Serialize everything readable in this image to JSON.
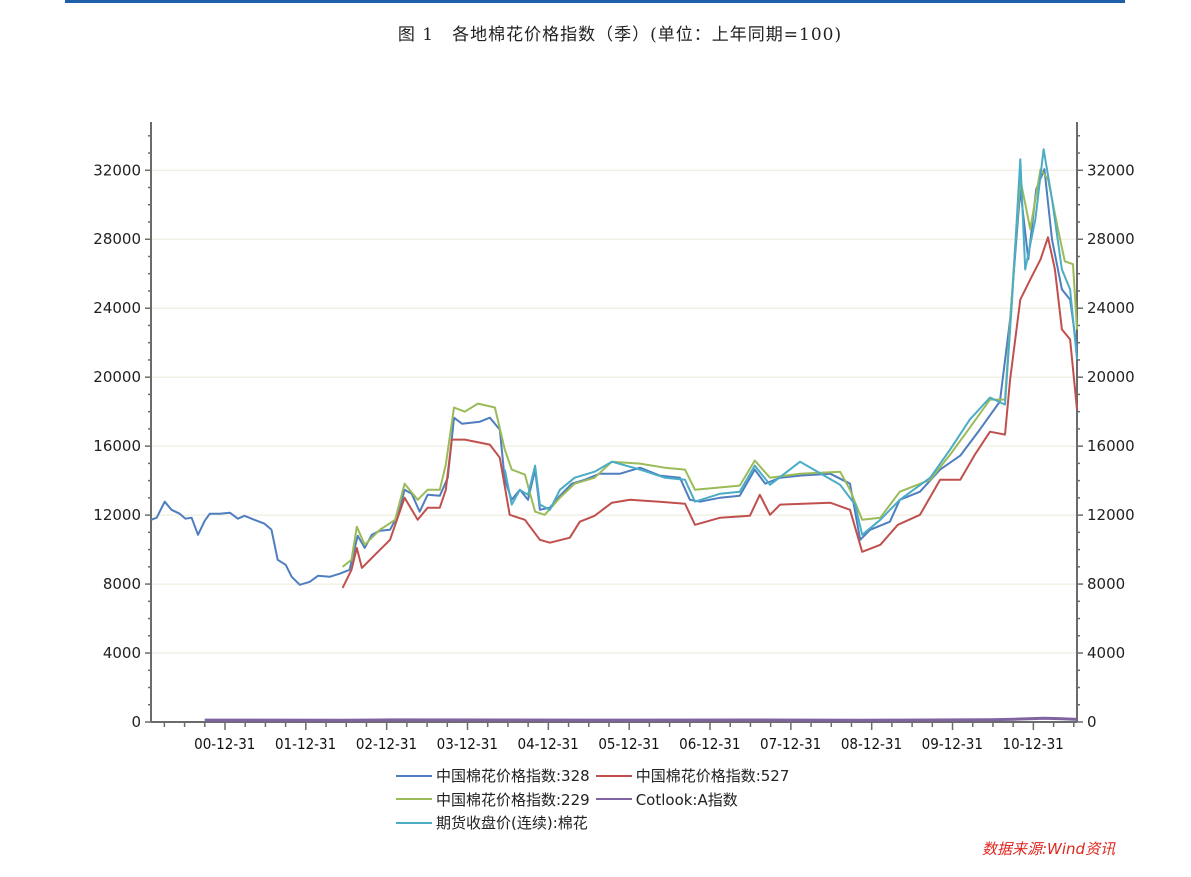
{
  "title": "图 1　各地棉花价格指数（季）(单位：上年同期=100)",
  "source": "数据来源:Wind资讯",
  "colors": {
    "top_rule": "#1f5fa8",
    "source_text": "#e0261e"
  },
  "chart_data": {
    "type": "line",
    "title": "图 1　各地棉花价格指数（季）(单位：上年同期=100)",
    "xlabel": "",
    "ylabel": "",
    "xlim": [
      "2000-02-01",
      "2011-07-17"
    ],
    "ylim": [
      0,
      34800
    ],
    "yticks": [
      0,
      4000,
      8000,
      12000,
      16000,
      20000,
      24000,
      28000,
      32000
    ],
    "ytick_labels": [
      "0",
      "4000",
      "8000",
      "12000",
      "16000",
      "20000",
      "24000",
      "28000",
      "32000"
    ],
    "xticks": [
      "2000-12-31",
      "2001-12-31",
      "2002-12-31",
      "2003-12-31",
      "2004-12-31",
      "2005-12-31",
      "2006-12-31",
      "2007-12-31",
      "2008-12-31",
      "2009-12-31",
      "2010-12-31"
    ],
    "xtick_labels": [
      "00-12-31",
      "01-12-31",
      "02-12-31",
      "03-12-31",
      "04-12-31",
      "05-12-31",
      "06-12-31",
      "07-12-31",
      "08-12-31",
      "09-12-31",
      "10-12-31"
    ],
    "dual_y_axis": true,
    "grid": "horizontal",
    "legend_position": "bottom",
    "series": [
      {
        "name": "中国棉花价格指数:328",
        "color": "#4f7ec0",
        "points": [
          [
            "2000-02-01",
            11730
          ],
          [
            "2000-02-27",
            11850
          ],
          [
            "2000-04-03",
            12780
          ],
          [
            "2000-05-04",
            12310
          ],
          [
            "2000-06-10",
            12080
          ],
          [
            "2000-07-06",
            11790
          ],
          [
            "2000-08-03",
            11850
          ],
          [
            "2000-09-01",
            10860
          ],
          [
            "2000-10-01",
            11670
          ],
          [
            "2000-10-24",
            12080
          ],
          [
            "2000-12-08",
            12080
          ],
          [
            "2001-01-23",
            12140
          ],
          [
            "2001-02-28",
            11790
          ],
          [
            "2001-03-30",
            11960
          ],
          [
            "2001-05-14",
            11730
          ],
          [
            "2001-06-29",
            11500
          ],
          [
            "2001-07-30",
            11150
          ],
          [
            "2001-08-27",
            9410
          ],
          [
            "2001-10-02",
            9120
          ],
          [
            "2001-10-29",
            8420
          ],
          [
            "2001-12-05",
            7960
          ],
          [
            "2002-01-19",
            8130
          ],
          [
            "2002-02-25",
            8480
          ],
          [
            "2002-04-19",
            8420
          ],
          [
            "2002-06-03",
            8600
          ],
          [
            "2002-07-17",
            8830
          ],
          [
            "2002-08-23",
            10800
          ],
          [
            "2002-09-24",
            10100
          ],
          [
            "2002-10-26",
            10860
          ],
          [
            "2002-12-01",
            11090
          ],
          [
            "2003-01-16",
            11150
          ],
          [
            "2003-02-21",
            12020
          ],
          [
            "2003-03-23",
            13470
          ],
          [
            "2003-04-24",
            13240
          ],
          [
            "2003-05-30",
            12200
          ],
          [
            "2003-07-05",
            13180
          ],
          [
            "2003-08-29",
            13120
          ],
          [
            "2003-10-04",
            14170
          ],
          [
            "2003-11-01",
            17650
          ],
          [
            "2003-12-07",
            17300
          ],
          [
            "2004-02-26",
            17420
          ],
          [
            "2004-04-11",
            17650
          ],
          [
            "2004-05-26",
            16960
          ],
          [
            "2004-06-18",
            14050
          ],
          [
            "2004-07-19",
            12890
          ],
          [
            "2004-08-25",
            13470
          ],
          [
            "2004-10-01",
            12890
          ],
          [
            "2004-11-02",
            14640
          ],
          [
            "2004-11-24",
            12310
          ],
          [
            "2005-01-08",
            12430
          ],
          [
            "2005-02-22",
            13120
          ],
          [
            "2005-04-17",
            13820
          ],
          [
            "2005-06-14",
            14050
          ],
          [
            "2005-08-21",
            14400
          ],
          [
            "2005-11-21",
            14400
          ],
          [
            "2006-02-19",
            14750
          ],
          [
            "2006-05-19",
            14290
          ],
          [
            "2006-08-18",
            14170
          ],
          [
            "2006-10-02",
            12890
          ],
          [
            "2006-11-17",
            12780
          ],
          [
            "2007-02-16",
            13010
          ],
          [
            "2007-05-15",
            13120
          ],
          [
            "2007-07-22",
            14640
          ],
          [
            "2007-09-07",
            13820
          ],
          [
            "2007-11-14",
            14170
          ],
          [
            "2008-02-12",
            14290
          ],
          [
            "2008-06-27",
            14400
          ],
          [
            "2008-09-25",
            13820
          ],
          [
            "2008-11-10",
            10570
          ],
          [
            "2008-12-25",
            11150
          ],
          [
            "2009-03-24",
            11620
          ],
          [
            "2009-05-08",
            12890
          ],
          [
            "2009-08-07",
            13360
          ],
          [
            "2009-11-06",
            14640
          ],
          [
            "2010-02-05",
            15450
          ],
          [
            "2010-05-04",
            16960
          ],
          [
            "2010-08-03",
            18590
          ],
          [
            "2010-09-18",
            23350
          ],
          [
            "2010-11-03",
            30900
          ],
          [
            "2010-12-09",
            26830
          ],
          [
            "2011-01-14",
            30900
          ],
          [
            "2011-02-20",
            32060
          ],
          [
            "2011-03-26",
            27990
          ],
          [
            "2011-05-10",
            25090
          ],
          [
            "2011-06-16",
            24500
          ],
          [
            "2011-07-17",
            21610
          ]
        ]
      },
      {
        "name": "中国棉花价格指数:527",
        "color": "#c0504d",
        "points": [
          [
            "2002-06-16",
            7780
          ],
          [
            "2002-07-26",
            8830
          ],
          [
            "2002-08-19",
            10100
          ],
          [
            "2002-09-11",
            8940
          ],
          [
            "2002-11-09",
            9700
          ],
          [
            "2003-01-16",
            10570
          ],
          [
            "2003-03-23",
            13010
          ],
          [
            "2003-05-21",
            11730
          ],
          [
            "2003-07-05",
            12430
          ],
          [
            "2003-08-29",
            12430
          ],
          [
            "2003-09-25",
            13470
          ],
          [
            "2003-10-22",
            16380
          ],
          [
            "2003-12-20",
            16380
          ],
          [
            "2004-04-11",
            16090
          ],
          [
            "2004-05-26",
            15330
          ],
          [
            "2004-07-10",
            12020
          ],
          [
            "2004-09-17",
            11730
          ],
          [
            "2004-11-24",
            10570
          ],
          [
            "2005-01-08",
            10400
          ],
          [
            "2005-04-08",
            10690
          ],
          [
            "2005-05-23",
            11620
          ],
          [
            "2005-07-29",
            11960
          ],
          [
            "2005-10-15",
            12720
          ],
          [
            "2006-01-05",
            12890
          ],
          [
            "2006-05-19",
            12780
          ],
          [
            "2006-09-10",
            12660
          ],
          [
            "2006-10-25",
            11440
          ],
          [
            "2007-02-16",
            11850
          ],
          [
            "2007-06-30",
            11960
          ],
          [
            "2007-08-14",
            13180
          ],
          [
            "2007-09-29",
            12020
          ],
          [
            "2007-11-14",
            12610
          ],
          [
            "2008-06-27",
            12720
          ],
          [
            "2008-09-25",
            12310
          ],
          [
            "2008-11-19",
            9870
          ],
          [
            "2009-02-09",
            10280
          ],
          [
            "2009-04-29",
            11440
          ],
          [
            "2009-08-07",
            12020
          ],
          [
            "2009-11-06",
            14050
          ],
          [
            "2010-02-05",
            14050
          ],
          [
            "2010-04-12",
            15510
          ],
          [
            "2010-06-19",
            16840
          ],
          [
            "2010-08-26",
            16670
          ],
          [
            "2010-09-18",
            19860
          ],
          [
            "2010-11-03",
            24500
          ],
          [
            "2010-12-18",
            25670
          ],
          [
            "2011-02-02",
            26830
          ],
          [
            "2011-03-08",
            28110
          ],
          [
            "2011-04-08",
            26250
          ],
          [
            "2011-05-10",
            22770
          ],
          [
            "2011-06-16",
            22190
          ],
          [
            "2011-07-17",
            18120
          ]
        ]
      },
      {
        "name": "中国棉花价格指数:229",
        "color": "#9bbb59",
        "points": [
          [
            "2002-06-16",
            9000
          ],
          [
            "2002-07-26",
            9410
          ],
          [
            "2002-08-19",
            11330
          ],
          [
            "2002-09-24",
            10280
          ],
          [
            "2002-12-01",
            11150
          ],
          [
            "2003-02-08",
            11730
          ],
          [
            "2003-03-23",
            13820
          ],
          [
            "2003-05-21",
            12890
          ],
          [
            "2003-07-05",
            13470
          ],
          [
            "2003-08-29",
            13470
          ],
          [
            "2003-09-25",
            14930
          ],
          [
            "2003-11-01",
            18240
          ],
          [
            "2003-12-20",
            18000
          ],
          [
            "2004-02-17",
            18470
          ],
          [
            "2004-05-04",
            18240
          ],
          [
            "2004-06-18",
            15800
          ],
          [
            "2004-07-19",
            14640
          ],
          [
            "2004-09-17",
            14350
          ],
          [
            "2004-11-02",
            12200
          ],
          [
            "2004-12-16",
            12020
          ],
          [
            "2005-02-22",
            13010
          ],
          [
            "2005-04-30",
            13820
          ],
          [
            "2005-07-29",
            14170
          ],
          [
            "2005-10-15",
            15100
          ],
          [
            "2006-02-19",
            14990
          ],
          [
            "2006-06-11",
            14750
          ],
          [
            "2006-09-10",
            14640
          ],
          [
            "2006-10-25",
            13470
          ],
          [
            "2007-05-15",
            13710
          ],
          [
            "2007-07-22",
            15160
          ],
          [
            "2007-09-29",
            14170
          ],
          [
            "2008-02-12",
            14400
          ],
          [
            "2008-08-11",
            14520
          ],
          [
            "2008-09-25",
            13470
          ],
          [
            "2008-11-19",
            11730
          ],
          [
            "2009-02-09",
            11850
          ],
          [
            "2009-05-08",
            13360
          ],
          [
            "2009-09-22",
            14050
          ],
          [
            "2009-12-21",
            15510
          ],
          [
            "2010-03-20",
            17070
          ],
          [
            "2010-06-19",
            18700
          ],
          [
            "2010-08-26",
            18700
          ],
          [
            "2010-10-10",
            27410
          ],
          [
            "2010-11-03",
            31480
          ],
          [
            "2010-12-18",
            28580
          ],
          [
            "2011-02-02",
            32060
          ],
          [
            "2011-03-08",
            31480
          ],
          [
            "2011-04-22",
            28580
          ],
          [
            "2011-05-23",
            26720
          ],
          [
            "2011-06-29",
            26550
          ],
          [
            "2011-07-17",
            22770
          ]
        ]
      },
      {
        "name": "Cotlook:A指数",
        "color": "#8064a2",
        "points": [
          [
            "2000-10-01",
            110
          ],
          [
            "2002-06-16",
            105
          ],
          [
            "2003-01-16",
            120
          ],
          [
            "2004-06-18",
            115
          ],
          [
            "2005-06-14",
            110
          ],
          [
            "2007-06-30",
            115
          ],
          [
            "2008-11-10",
            100
          ],
          [
            "2009-05-08",
            110
          ],
          [
            "2010-06-19",
            125
          ],
          [
            "2010-10-10",
            160
          ],
          [
            "2011-02-20",
            220
          ],
          [
            "2011-05-10",
            190
          ],
          [
            "2011-07-17",
            150
          ]
        ]
      },
      {
        "name": "期货收盘价(连续):棉花",
        "color": "#4bacc6",
        "points": [
          [
            "2004-06-18",
            14640
          ],
          [
            "2004-07-19",
            12610
          ],
          [
            "2004-08-25",
            13470
          ],
          [
            "2004-10-01",
            13180
          ],
          [
            "2004-11-02",
            14870
          ],
          [
            "2004-11-24",
            12610
          ],
          [
            "2005-01-08",
            12310
          ],
          [
            "2005-02-22",
            13470
          ],
          [
            "2005-04-30",
            14170
          ],
          [
            "2005-07-29",
            14520
          ],
          [
            "2005-10-15",
            15100
          ],
          [
            "2006-02-19",
            14640
          ],
          [
            "2006-06-11",
            14170
          ],
          [
            "2006-09-10",
            14050
          ],
          [
            "2006-10-25",
            12780
          ],
          [
            "2007-02-16",
            13240
          ],
          [
            "2007-05-15",
            13360
          ],
          [
            "2007-07-22",
            14870
          ],
          [
            "2007-09-29",
            13760
          ],
          [
            "2008-02-12",
            15100
          ],
          [
            "2008-08-11",
            13760
          ],
          [
            "2008-10-18",
            12610
          ],
          [
            "2008-11-19",
            10860
          ],
          [
            "2009-02-09",
            11730
          ],
          [
            "2009-05-08",
            12890
          ],
          [
            "2009-09-22",
            14170
          ],
          [
            "2009-12-21",
            15800
          ],
          [
            "2010-03-20",
            17540
          ],
          [
            "2010-06-19",
            18820
          ],
          [
            "2010-08-26",
            18410
          ],
          [
            "2010-09-27",
            24500
          ],
          [
            "2010-11-03",
            32640
          ],
          [
            "2010-11-25",
            26250
          ],
          [
            "2011-01-10",
            29160
          ],
          [
            "2011-02-16",
            33220
          ],
          [
            "2011-03-26",
            30320
          ],
          [
            "2011-05-10",
            26250
          ],
          [
            "2011-06-16",
            25090
          ],
          [
            "2011-07-17",
            21030
          ]
        ]
      }
    ]
  }
}
